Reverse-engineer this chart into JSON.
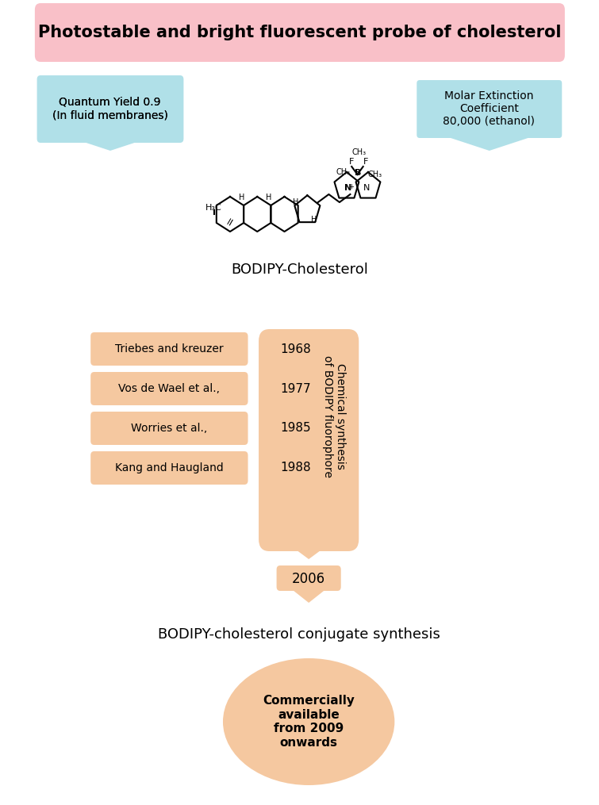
{
  "title": "Photostable and bright fluorescent probe of cholesterol",
  "title_bg": "#f9c0c8",
  "title_color": "#000000",
  "bg_color": "#ffffff",
  "left_box_text": "Quantum Yield 0.9\n(In fluid membranes)",
  "left_box_bg": "#b0e0e8",
  "right_box_text": "Molar Extinction\nCoefficient\n80,000 (ethanol)",
  "right_box_bg": "#b0e0e8",
  "molecule_label": "BODIPY-Cholesterol",
  "timeline_bg": "#f5c8a0",
  "timeline_entries": [
    {
      "author": "Triebes and kreuzer",
      "year": "1968"
    },
    {
      "author": "Vos de Wael et al.,",
      "year": "1977"
    },
    {
      "author": "Worries et al.,",
      "year": "1985"
    },
    {
      "author": "Kang and Haugland",
      "year": "1988"
    }
  ],
  "timeline_label": "Chemical synthesis\nof BODIPY fluorophore",
  "arrow_year": "2006",
  "synthesis_text": "BODIPY-cholesterol conjugate synthesis",
  "ellipse_text": "Commercially\navailable\nfrom 2009\nonwards",
  "ellipse_bg": "#f5c8a0",
  "entry_bg": "#f5c8a0"
}
